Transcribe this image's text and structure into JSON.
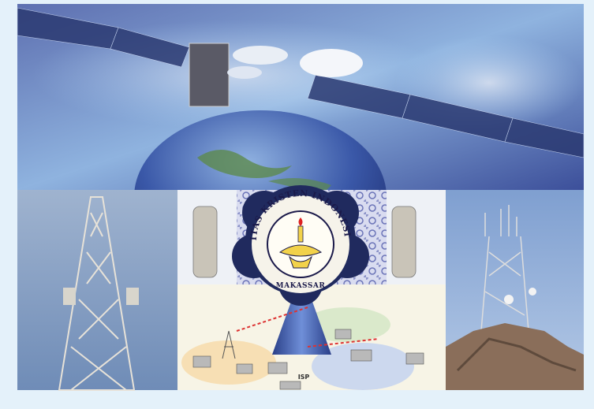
{
  "logo": {
    "ring_text": "UNIVERSITAS KRISTEN INDONESIA PAULUS",
    "city": "MAKASSAR"
  },
  "network": {
    "isp_label": "ISP"
  }
}
